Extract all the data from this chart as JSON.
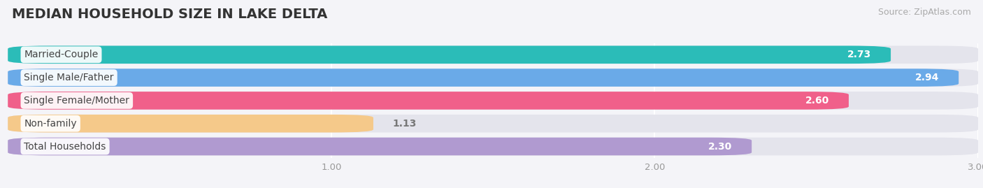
{
  "title": "MEDIAN HOUSEHOLD SIZE IN LAKE DELTA",
  "source": "Source: ZipAtlas.com",
  "categories": [
    "Married-Couple",
    "Single Male/Father",
    "Single Female/Mother",
    "Non-family",
    "Total Households"
  ],
  "values": [
    2.73,
    2.94,
    2.6,
    1.13,
    2.3
  ],
  "bar_colors": [
    "#2bbcb8",
    "#6aaae8",
    "#f0608a",
    "#f5c98a",
    "#b09ad0"
  ],
  "background_color": "#f4f4f8",
  "bar_bg_color": "#e4e4ec",
  "xlim_data": [
    0.0,
    3.0
  ],
  "xstart": 0.0,
  "xticks": [
    1.0,
    2.0,
    3.0
  ],
  "title_fontsize": 14,
  "source_fontsize": 9,
  "label_fontsize": 10,
  "value_fontsize": 10
}
